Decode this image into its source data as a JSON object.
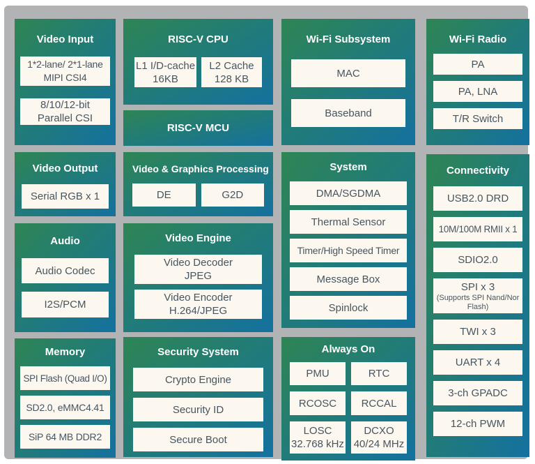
{
  "colors": {
    "canvas_bg": "#b1b3b4",
    "panel_gradient_start": "#2e8554",
    "panel_gradient_end": "#14719f",
    "box_bg": "#fcf8f0",
    "box_text": "#47555f",
    "title_text": "#ffffff"
  },
  "panels": {
    "video_input": {
      "title": "Video Input",
      "boxes": [
        [
          "1*2-lane/ 2*1-lane",
          "MIPI CSI4"
        ],
        [
          "8/10/12-bit",
          "Parallel CSI"
        ]
      ]
    },
    "riscv_cpu": {
      "title": "RISC-V CPU",
      "boxes": [
        [
          "L1 I/D-cache",
          "16KB"
        ],
        [
          "L2 Cache",
          "128 KB"
        ]
      ]
    },
    "riscv_mcu": {
      "title": "RISC-V MCU"
    },
    "wifi_subsystem": {
      "title": "Wi-Fi Subsystem",
      "boxes": [
        [
          "MAC"
        ],
        [
          "Baseband"
        ]
      ]
    },
    "wifi_radio": {
      "title": "Wi-Fi Radio",
      "boxes": [
        [
          "PA"
        ],
        [
          "PA, LNA"
        ],
        [
          "T/R Switch"
        ]
      ]
    },
    "video_output": {
      "title": "Video Output",
      "boxes": [
        [
          "Serial RGB x 1"
        ]
      ]
    },
    "video_graphics": {
      "title": "Video & Graphics Processing",
      "boxes": [
        [
          "DE"
        ],
        [
          "G2D"
        ]
      ]
    },
    "system": {
      "title": "System",
      "boxes": [
        [
          "DMA/SGDMA"
        ],
        [
          "Thermal Sensor"
        ],
        [
          "Timer/High Speed Timer"
        ],
        [
          "Message Box"
        ],
        [
          "Spinlock"
        ]
      ]
    },
    "connectivity": {
      "title": "Connectivity",
      "boxes": [
        [
          "USB2.0 DRD"
        ],
        [
          "10M/100M RMII x 1"
        ],
        [
          "SDIO2.0"
        ],
        [
          "SPI x 3",
          "(Supports SPI Nand/Nor Flash)"
        ],
        [
          "TWI x 3"
        ],
        [
          "UART x 4"
        ],
        [
          "3-ch GPADC"
        ],
        [
          "12-ch PWM"
        ]
      ]
    },
    "audio": {
      "title": "Audio",
      "boxes": [
        [
          "Audio Codec"
        ],
        [
          "I2S/PCM"
        ]
      ]
    },
    "video_engine": {
      "title": "Video Engine",
      "boxes": [
        [
          "Video Decoder",
          "JPEG"
        ],
        [
          "Video Encoder",
          "H.264/JPEG"
        ]
      ]
    },
    "memory": {
      "title": "Memory",
      "boxes": [
        [
          "SPI Flash (Quad I/O)"
        ],
        [
          "SD2.0, eMMC4.41"
        ],
        [
          "SiP 64 MB DDR2"
        ]
      ]
    },
    "security": {
      "title": "Security System",
      "boxes": [
        [
          "Crypto Engine"
        ],
        [
          "Security ID"
        ],
        [
          "Secure Boot"
        ]
      ]
    },
    "always_on": {
      "title": "Always On",
      "boxes": [
        [
          "PMU"
        ],
        [
          "RTC"
        ],
        [
          "RCOSC"
        ],
        [
          "RCCAL"
        ],
        [
          "LOSC",
          "32.768 kHz"
        ],
        [
          "DCXO",
          "40/24 MHz"
        ]
      ]
    }
  }
}
